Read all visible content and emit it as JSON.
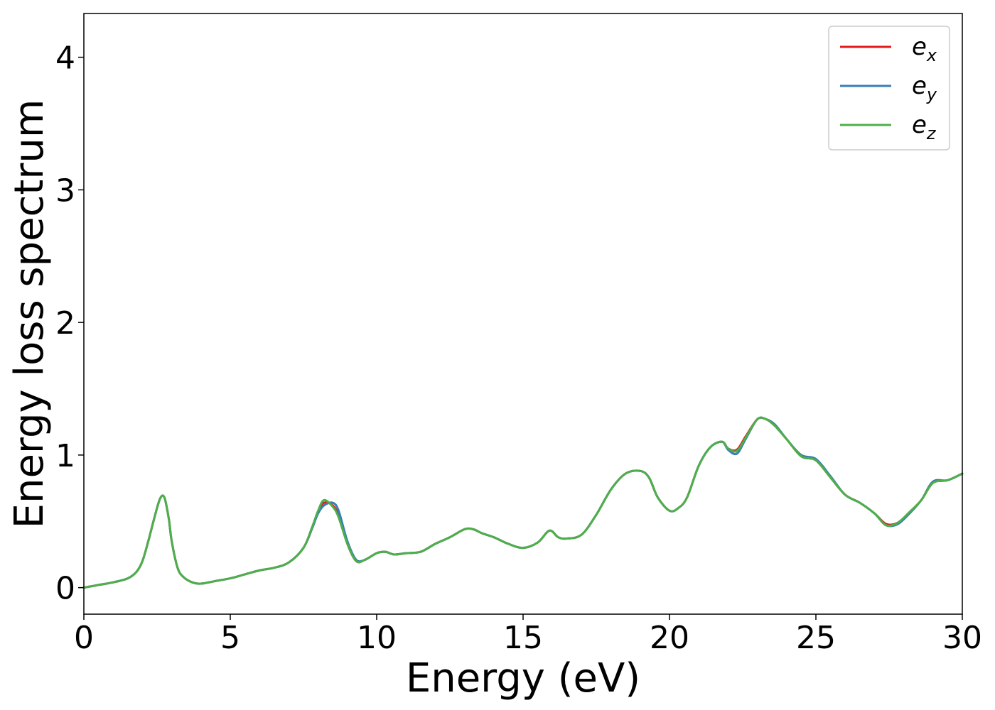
{
  "chart_data": {
    "type": "line",
    "xlabel": "Energy (eV)",
    "ylabel": "Energy loss spectrum",
    "xlim": [
      0,
      30
    ],
    "ylim": [
      -0.2,
      4.33
    ],
    "xticks": [
      0,
      5,
      10,
      15,
      20,
      25,
      30
    ],
    "xtick_labels": [
      "0",
      "5",
      "10",
      "15",
      "20",
      "25",
      "30"
    ],
    "yticks": [
      0,
      1,
      2,
      3,
      4
    ],
    "ytick_labels": [
      "0",
      "1",
      "2",
      "3",
      "4"
    ],
    "grid": false,
    "legend_position": "top-right",
    "series": [
      {
        "name": "e",
        "subscript": "x",
        "color": "#e41a1c",
        "x": [
          0,
          0.5,
          1.0,
          1.5,
          1.8,
          2.0,
          2.2,
          2.4,
          2.6,
          2.75,
          2.9,
          3.0,
          3.2,
          3.4,
          3.7,
          4.0,
          4.5,
          5.0,
          5.5,
          6.0,
          6.5,
          7.0,
          7.5,
          7.8,
          8.0,
          8.2,
          8.5,
          8.7,
          9.0,
          9.3,
          9.6,
          10.0,
          10.3,
          10.6,
          11.0,
          11.5,
          12.0,
          12.5,
          13.0,
          13.3,
          13.6,
          14.0,
          14.5,
          15.0,
          15.5,
          15.9,
          16.2,
          16.5,
          17.0,
          17.5,
          18.0,
          18.5,
          19.0,
          19.3,
          19.6,
          20.0,
          20.3,
          20.6,
          21.0,
          21.4,
          21.8,
          22.0,
          22.3,
          22.6,
          23.0,
          23.3,
          23.6,
          24.0,
          24.5,
          25.0,
          25.5,
          26.0,
          26.5,
          27.0,
          27.4,
          27.8,
          28.2,
          28.6,
          29.0,
          29.5,
          30.0
        ],
        "values": [
          0,
          0.02,
          0.04,
          0.07,
          0.12,
          0.2,
          0.35,
          0.52,
          0.67,
          0.68,
          0.52,
          0.35,
          0.15,
          0.08,
          0.04,
          0.03,
          0.05,
          0.07,
          0.1,
          0.13,
          0.15,
          0.19,
          0.3,
          0.45,
          0.57,
          0.64,
          0.62,
          0.54,
          0.33,
          0.2,
          0.21,
          0.26,
          0.27,
          0.25,
          0.26,
          0.27,
          0.33,
          0.38,
          0.44,
          0.44,
          0.41,
          0.38,
          0.33,
          0.3,
          0.34,
          0.43,
          0.38,
          0.37,
          0.4,
          0.55,
          0.74,
          0.86,
          0.88,
          0.83,
          0.68,
          0.58,
          0.6,
          0.68,
          0.92,
          1.06,
          1.1,
          1.05,
          1.04,
          1.14,
          1.27,
          1.27,
          1.22,
          1.12,
          0.99,
          0.96,
          0.83,
          0.7,
          0.64,
          0.56,
          0.48,
          0.49,
          0.57,
          0.66,
          0.79,
          0.81,
          0.86
        ]
      },
      {
        "name": "e",
        "subscript": "y",
        "color": "#377eb8",
        "x": [
          0,
          0.5,
          1.0,
          1.5,
          1.8,
          2.0,
          2.2,
          2.4,
          2.6,
          2.75,
          2.9,
          3.0,
          3.2,
          3.4,
          3.7,
          4.0,
          4.5,
          5.0,
          5.5,
          6.0,
          6.5,
          7.0,
          7.5,
          7.8,
          8.0,
          8.2,
          8.5,
          8.7,
          9.0,
          9.3,
          9.6,
          10.0,
          10.3,
          10.6,
          11.0,
          11.5,
          12.0,
          12.5,
          13.0,
          13.3,
          13.6,
          14.0,
          14.5,
          15.0,
          15.5,
          15.9,
          16.2,
          16.5,
          17.0,
          17.5,
          18.0,
          18.5,
          19.0,
          19.3,
          19.6,
          20.0,
          20.3,
          20.6,
          21.0,
          21.4,
          21.8,
          22.0,
          22.3,
          22.6,
          23.0,
          23.3,
          23.6,
          24.0,
          24.5,
          25.0,
          25.5,
          26.0,
          26.5,
          27.0,
          27.4,
          27.8,
          28.2,
          28.6,
          29.0,
          29.5,
          30.0
        ],
        "values": [
          0,
          0.02,
          0.04,
          0.07,
          0.12,
          0.2,
          0.35,
          0.52,
          0.67,
          0.68,
          0.52,
          0.35,
          0.15,
          0.08,
          0.04,
          0.03,
          0.05,
          0.07,
          0.1,
          0.13,
          0.15,
          0.19,
          0.3,
          0.45,
          0.56,
          0.62,
          0.64,
          0.58,
          0.35,
          0.21,
          0.21,
          0.26,
          0.27,
          0.25,
          0.26,
          0.27,
          0.33,
          0.38,
          0.44,
          0.44,
          0.41,
          0.38,
          0.33,
          0.3,
          0.34,
          0.43,
          0.38,
          0.37,
          0.4,
          0.55,
          0.74,
          0.86,
          0.88,
          0.83,
          0.68,
          0.58,
          0.6,
          0.68,
          0.92,
          1.06,
          1.1,
          1.04,
          1.01,
          1.12,
          1.27,
          1.27,
          1.23,
          1.12,
          1.0,
          0.97,
          0.84,
          0.7,
          0.64,
          0.56,
          0.47,
          0.48,
          0.56,
          0.66,
          0.8,
          0.81,
          0.86
        ]
      },
      {
        "name": "e",
        "subscript": "z",
        "color": "#4daf4a",
        "x": [
          0,
          0.5,
          1.0,
          1.5,
          1.8,
          2.0,
          2.2,
          2.4,
          2.6,
          2.75,
          2.9,
          3.0,
          3.2,
          3.4,
          3.7,
          4.0,
          4.5,
          5.0,
          5.5,
          6.0,
          6.5,
          7.0,
          7.5,
          7.8,
          8.0,
          8.2,
          8.5,
          8.7,
          9.0,
          9.3,
          9.6,
          10.0,
          10.3,
          10.6,
          11.0,
          11.5,
          12.0,
          12.5,
          13.0,
          13.3,
          13.6,
          14.0,
          14.5,
          15.0,
          15.5,
          15.9,
          16.2,
          16.5,
          17.0,
          17.5,
          18.0,
          18.5,
          19.0,
          19.3,
          19.6,
          20.0,
          20.3,
          20.6,
          21.0,
          21.4,
          21.8,
          22.0,
          22.3,
          22.6,
          23.0,
          23.3,
          23.6,
          24.0,
          24.5,
          25.0,
          25.5,
          26.0,
          26.5,
          27.0,
          27.4,
          27.8,
          28.2,
          28.6,
          29.0,
          29.5,
          30.0
        ],
        "values": [
          0,
          0.02,
          0.04,
          0.07,
          0.12,
          0.2,
          0.35,
          0.52,
          0.67,
          0.68,
          0.52,
          0.35,
          0.15,
          0.08,
          0.04,
          0.03,
          0.05,
          0.07,
          0.1,
          0.13,
          0.15,
          0.19,
          0.3,
          0.46,
          0.58,
          0.66,
          0.61,
          0.53,
          0.33,
          0.2,
          0.21,
          0.26,
          0.27,
          0.25,
          0.26,
          0.27,
          0.33,
          0.38,
          0.44,
          0.44,
          0.41,
          0.38,
          0.33,
          0.3,
          0.34,
          0.43,
          0.38,
          0.37,
          0.4,
          0.55,
          0.74,
          0.86,
          0.88,
          0.83,
          0.68,
          0.58,
          0.6,
          0.68,
          0.92,
          1.06,
          1.1,
          1.05,
          1.03,
          1.13,
          1.27,
          1.27,
          1.22,
          1.12,
          0.99,
          0.96,
          0.83,
          0.7,
          0.64,
          0.56,
          0.47,
          0.49,
          0.57,
          0.66,
          0.79,
          0.81,
          0.86
        ]
      }
    ]
  }
}
